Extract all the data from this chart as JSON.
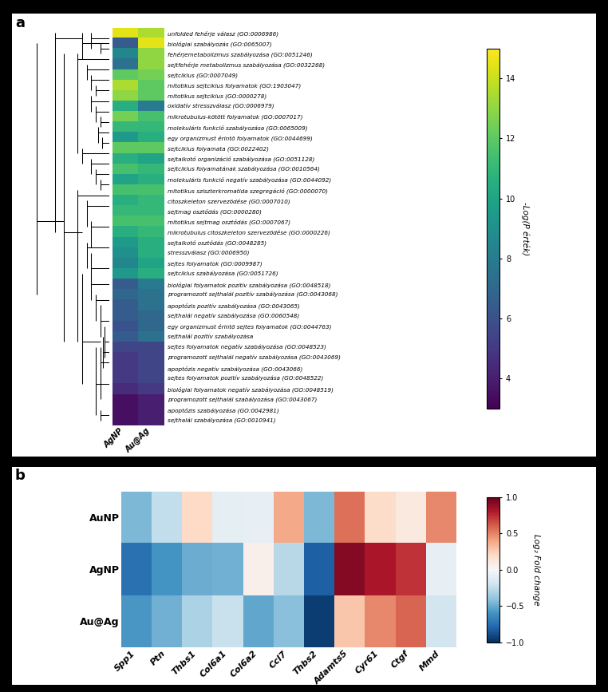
{
  "panel_a": {
    "labels": [
      "unfolded fehérje válasz (GO:0006986)",
      "biológiai szabályozás (GO:0065007)",
      "fehérjemetabolizmus szabályozása (GO:0051246)",
      "sejtfehérje metabolizmus szabályozása (GO:0032268)",
      "sejtciklus (GO:0007049)",
      "mitotikus sejtciklus folyamatok (GO:1903047)",
      "mitotikus sejtciklus (GO:0000278)",
      "oxidatív stresszválasz (GO:0006979)",
      "mikrotubulus-kötött folyamatok (GO:0007017)",
      "molekuláris funkció szabályozása (GO:0065009)",
      "egy organizmust érintö folyamatok (GO:0044699)",
      "sejtciklus folyamata (GO:0022402)",
      "sejtalkotó organizáció szabályozása (GO:0051128)",
      "sejtciklus folyamatának szabályozása (GO:0010564)",
      "molekuláris funkció negatív szabályozása (GO:0044092)",
      "mitotikus sziszterkromatida szegregáció (GO:0000070)",
      "citoszkeleton szervezödése (GO:0007010)",
      "sejtmag osztódás (GO:0000280)",
      "mitotikus sejtmag osztódás (GO:0007067)",
      "mikrotubulus citoszkeleton szervezödése (GO:0000226)",
      "sejtalkotó osztódás (GO:0048285)",
      "stresszválasz (GO:0006950)",
      "sejtes folyamatok (GO:0009987)",
      "sejtciklus szabályozása (GO:0051726)",
      "biológiai folyamatok pozitív szabályozása (GO:0048518)",
      "programozott sejthalál pozitív szabályozása (GO:0043068)",
      "apoptózis pozitív szabályozása (GO:0043065)",
      "sejthalál negatív szabályozása (GO:0060548)",
      "egy organizmust érintö sejtes folyamatok (GO:0044763)",
      "sejthalál pozitív szabályozása",
      "sejtes folyamatok negatív szabályozása (GO:0048523)",
      "programozott sejthalál negatív szabályozása (GO:0043069)",
      "apoptózis negatív szabályozása (GO:0043066)",
      "sejtes folyamatok pozitív szabályozása (GO:0048522)",
      "biológiai folyamatok negatív szabályozása (GO:0048519)",
      "programozott sejthalál szabályozása (GO:0043067)",
      "apoptózis szabályozása (GO:0042981)",
      "sejthalál szabályozása (GO:0010941)"
    ],
    "agNP_values": [
      14.5,
      6.5,
      8.5,
      7.5,
      12.0,
      13.5,
      13.0,
      10.5,
      12.5,
      11.0,
      9.5,
      12.0,
      10.5,
      11.5,
      10.0,
      11.5,
      10.5,
      11.0,
      11.5,
      10.5,
      9.5,
      9.0,
      8.5,
      9.5,
      6.5,
      7.0,
      6.5,
      6.5,
      6.0,
      6.5,
      5.5,
      5.0,
      5.0,
      5.0,
      4.5,
      3.5,
      3.5,
      3.5
    ],
    "auag_values": [
      13.5,
      14.5,
      13.0,
      13.0,
      12.5,
      12.0,
      12.0,
      8.0,
      11.5,
      11.0,
      10.5,
      12.0,
      10.0,
      11.0,
      10.5,
      11.5,
      11.0,
      11.0,
      11.5,
      11.0,
      10.5,
      10.5,
      10.0,
      10.5,
      8.0,
      7.5,
      7.5,
      7.0,
      7.0,
      7.5,
      5.5,
      5.5,
      5.5,
      5.5,
      5.0,
      4.0,
      4.0,
      4.0
    ],
    "colorbar_label": "-Log(P érték)",
    "vmin": 3,
    "vmax": 15,
    "colorbar_ticks": [
      4,
      6,
      8,
      10,
      12,
      14
    ]
  },
  "panel_b": {
    "row_labels": [
      "AuNP",
      "AgNP",
      "Au@Ag"
    ],
    "col_labels": [
      "Spp1",
      "Ptn",
      "Thbs1",
      "Col6a1",
      "Col6a2",
      "Ccl7",
      "Thbs2",
      "Adamts5",
      "Cyr61",
      "Ctgf",
      "Mmd"
    ],
    "data": [
      [
        -0.45,
        -0.25,
        0.2,
        -0.1,
        -0.08,
        0.38,
        -0.45,
        0.55,
        0.18,
        0.1,
        0.48
      ],
      [
        -0.75,
        -0.6,
        -0.5,
        -0.48,
        0.05,
        -0.28,
        -0.82,
        0.92,
        0.82,
        0.72,
        -0.08
      ],
      [
        -0.58,
        -0.48,
        -0.32,
        -0.22,
        -0.52,
        -0.42,
        -0.95,
        0.28,
        0.48,
        0.58,
        -0.18
      ]
    ],
    "colorbar_label": "Log₂ Fold change",
    "vmin": -1.0,
    "vmax": 1.0,
    "colorbar_ticks": [
      -1.0,
      -0.5,
      0,
      0.5,
      1.0
    ]
  },
  "figure_bg": "#000000",
  "panel_a_bg": "#ffffff",
  "panel_b_bg": "#ffffff",
  "colormap_a": "viridis",
  "colormap_b": "RdBu_r"
}
